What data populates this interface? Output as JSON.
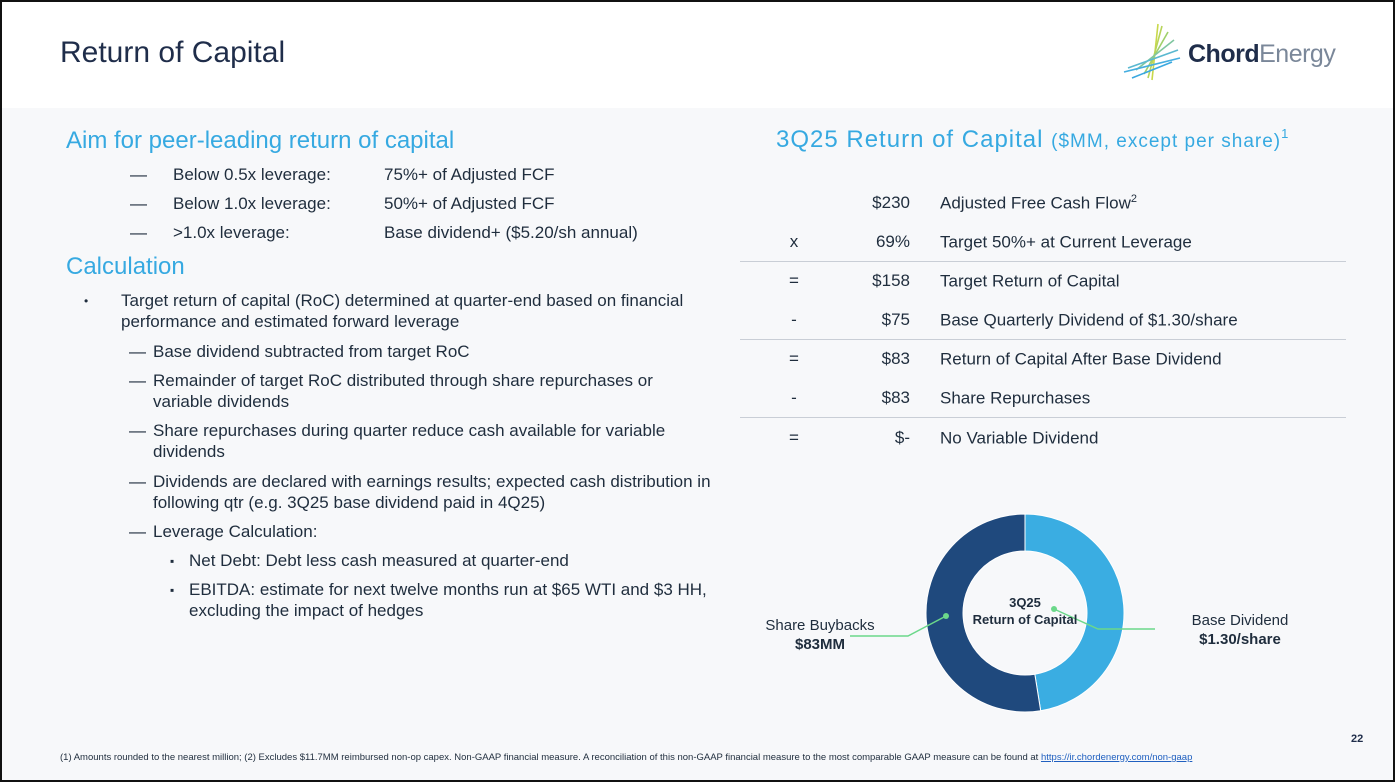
{
  "title": "Return of Capital",
  "logo": {
    "bold": "Chord",
    "light": "Energy"
  },
  "aim": {
    "heading": "Aim for peer-leading return of capital",
    "rows": [
      {
        "dash": "—",
        "condition": "Below 0.5x leverage:",
        "target": "75%+ of Adjusted FCF"
      },
      {
        "dash": "—",
        "condition": "Below 1.0x leverage:",
        "target": "50%+ of Adjusted FCF"
      },
      {
        "dash": "—",
        "condition": ">1.0x leverage:",
        "target": "Base dividend+ ($5.20/sh annual)"
      }
    ]
  },
  "calc": {
    "heading": "Calculation",
    "bullet": "Target return of capital (RoC) determined at quarter-end based on financial performance and estimated forward leverage",
    "subs": [
      "Base dividend subtracted from target RoC",
      "Remainder of target RoC distributed through share repurchases or variable dividends",
      "Share repurchases during quarter reduce cash available for variable dividends",
      "Dividends are declared with earnings results; expected cash distribution in following qtr (e.g. 3Q25 base dividend paid in 4Q25)",
      "Leverage Calculation:"
    ],
    "subsubs": [
      "Net Debt: Debt less cash measured at quarter-end",
      "EBITDA: estimate for next twelve months run at $65 WTI and $3 HH, excluding the impact of hedges"
    ],
    "dash": "—",
    "dot": "•",
    "square": "▪"
  },
  "table": {
    "title": "3Q25 Return of Capital",
    "subtitle": "($MM, except per share)",
    "title_sup": "1",
    "rows": [
      {
        "op": "",
        "value": "$230",
        "desc": "Adjusted Free Cash Flow",
        "sup": "2"
      },
      {
        "op": "x",
        "value": "69%",
        "desc": "Target 50%+ at Current Leverage",
        "sup": ""
      },
      {
        "op": "=",
        "value": "$158",
        "desc": "Target Return of Capital",
        "sup": ""
      },
      {
        "op": "-",
        "value": "$75",
        "desc": "Base Quarterly Dividend of $1.30/share",
        "sup": ""
      },
      {
        "op": "=",
        "value": "$83",
        "desc": "Return of Capital After Base Dividend",
        "sup": ""
      },
      {
        "op": "-",
        "value": "$83",
        "desc": "Share Repurchases",
        "sup": ""
      },
      {
        "op": "=",
        "value": "$-",
        "desc": "No Variable Dividend",
        "sup": ""
      }
    ]
  },
  "chart_data": {
    "type": "pie",
    "center_label": [
      "3Q25",
      "Return of Capital"
    ],
    "slices": [
      {
        "name": "Base Dividend",
        "label": "$1.30/share",
        "value": 75,
        "color": "#3aade2"
      },
      {
        "name": "Share Buybacks",
        "label": "$83MM",
        "value": 83,
        "color": "#1f497d"
      }
    ]
  },
  "footer": {
    "text": "(1) Amounts rounded to the nearest million; (2) Excludes $11.7MM reimbursed non-op capex. Non-GAAP financial measure. A reconciliation of this non-GAAP financial measure to the most comparable GAAP measure can be found at ",
    "link": "https://ir.chordenergy.com/non-gaap"
  },
  "page_number": "22"
}
